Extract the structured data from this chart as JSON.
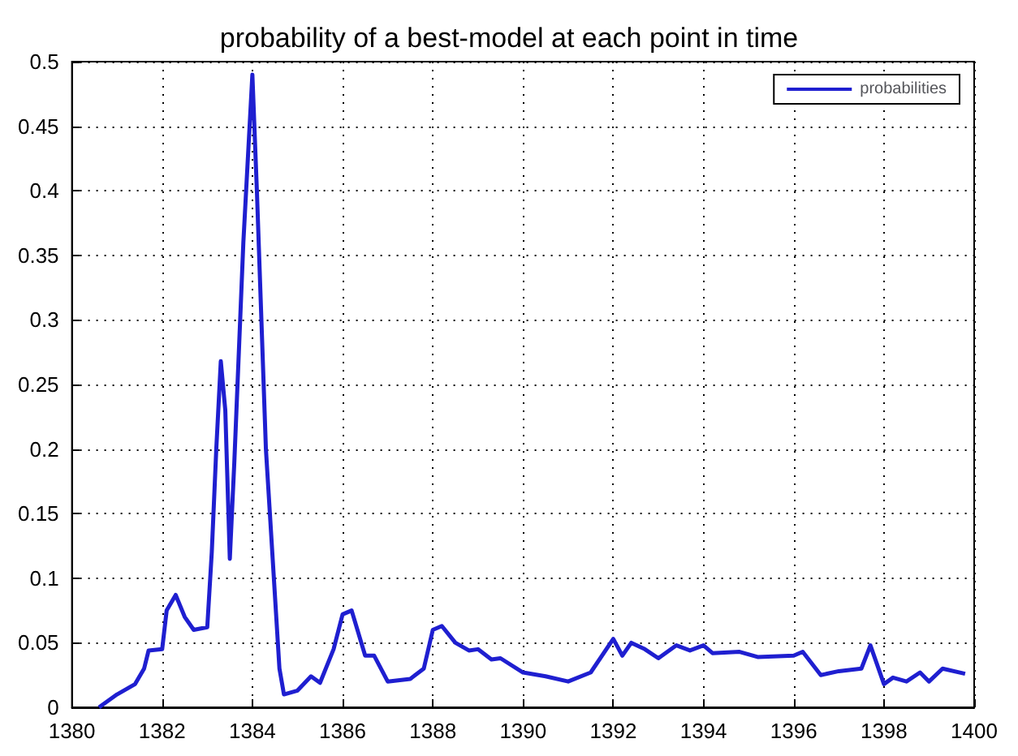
{
  "chart_data": {
    "type": "line",
    "title": "probability of a best-model at each point in time",
    "x": [
      1380.6,
      1381,
      1381.4,
      1381.6,
      1381.7,
      1382,
      1382.1,
      1382.3,
      1382.5,
      1382.7,
      1383,
      1383.1,
      1383.2,
      1383.3,
      1383.4,
      1383.5,
      1383.6,
      1383.8,
      1384,
      1384.1,
      1384.3,
      1384.6,
      1384.7,
      1385,
      1385.3,
      1385.5,
      1385.8,
      1386,
      1386.2,
      1386.5,
      1386.7,
      1387,
      1387.5,
      1387.8,
      1388,
      1388.2,
      1388.5,
      1388.8,
      1389,
      1389.3,
      1389.5,
      1390,
      1390.5,
      1391,
      1391.5,
      1392,
      1392.2,
      1392.4,
      1392.7,
      1393,
      1393.4,
      1393.7,
      1394,
      1394.2,
      1394.8,
      1395.2,
      1396,
      1396.2,
      1396.6,
      1397,
      1397.5,
      1397.7,
      1398,
      1398.2,
      1398.5,
      1398.8,
      1399,
      1399.3,
      1399.8
    ],
    "series": [
      {
        "name": "probabilities",
        "color": "#1f1fd0",
        "values": [
          0,
          0.01,
          0.018,
          0.03,
          0.044,
          0.045,
          0.075,
          0.087,
          0.07,
          0.06,
          0.062,
          0.12,
          0.2,
          0.268,
          0.23,
          0.115,
          0.19,
          0.36,
          0.49,
          0.4,
          0.2,
          0.03,
          0.01,
          0.013,
          0.024,
          0.019,
          0.045,
          0.072,
          0.075,
          0.04,
          0.04,
          0.02,
          0.022,
          0.03,
          0.06,
          0.063,
          0.05,
          0.044,
          0.045,
          0.037,
          0.038,
          0.027,
          0.024,
          0.02,
          0.027,
          0.053,
          0.04,
          0.05,
          0.045,
          0.038,
          0.048,
          0.044,
          0.048,
          0.042,
          0.043,
          0.039,
          0.04,
          0.043,
          0.025,
          0.028,
          0.03,
          0.048,
          0.018,
          0.023,
          0.02,
          0.027,
          0.02,
          0.03,
          0.026
        ]
      }
    ],
    "xlim": [
      1380,
      1400
    ],
    "xticks": [
      1380,
      1382,
      1384,
      1386,
      1388,
      1390,
      1392,
      1394,
      1396,
      1398,
      1400
    ],
    "ylim": [
      0,
      0.5
    ],
    "yticks": [
      0,
      0.05,
      0.1,
      0.15,
      0.2,
      0.25,
      0.3,
      0.35,
      0.4,
      0.45,
      0.5
    ],
    "grid": true,
    "legend": "top right",
    "line_style": "solid",
    "marker": "none"
  }
}
